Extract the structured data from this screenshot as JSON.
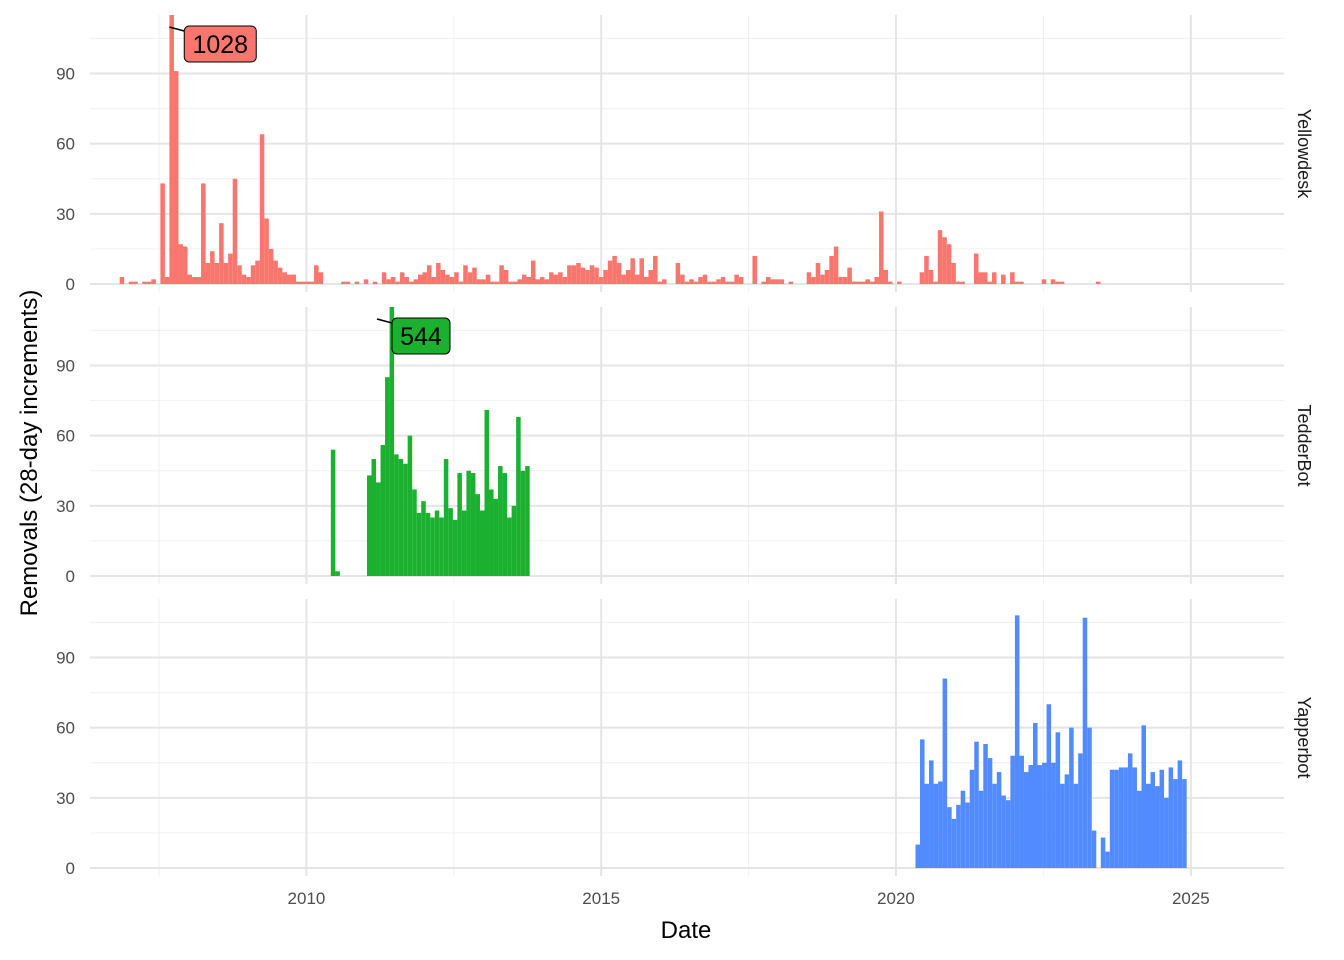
{
  "chart_data": {
    "type": "bar",
    "xlabel": "Date",
    "ylabel": "Removals (28-day increments)",
    "xlim": [
      "2006-05-01",
      "2026-08-01"
    ],
    "ylim": [
      0,
      115
    ],
    "x_ticks": [
      "2010-01-01",
      "2015-01-01",
      "2020-01-01",
      "2025-01-01"
    ],
    "x_tick_labels": [
      "2010",
      "2015",
      "2020",
      "2025"
    ],
    "y_ticks": [
      0,
      30,
      60,
      90
    ],
    "y_tick_labels": [
      "0",
      "30",
      "60",
      "90"
    ],
    "bin_days": 28,
    "grid": true,
    "facets": [
      {
        "name": "Yellowdesk",
        "color": "#F8766D",
        "start_date": "2006-11-01",
        "values": [
          3,
          0,
          1,
          1,
          0,
          1,
          1,
          2,
          0,
          43,
          3,
          1028,
          91,
          17,
          16,
          4,
          3,
          3,
          43,
          9,
          14,
          9,
          26,
          9,
          13,
          45,
          8,
          4,
          3,
          8,
          10,
          64,
          28,
          15,
          10,
          7,
          5,
          4,
          4,
          1,
          1,
          1,
          1,
          8,
          5,
          0,
          0,
          0,
          0,
          1,
          1,
          0,
          1,
          0,
          2,
          0,
          1,
          0,
          5,
          2,
          3,
          1,
          5,
          3,
          1,
          2,
          4,
          5,
          8,
          3,
          9,
          6,
          4,
          3,
          5,
          1,
          8,
          5,
          7,
          2,
          2,
          4,
          1,
          1,
          8,
          6,
          1,
          1,
          2,
          4,
          3,
          10,
          2,
          3,
          2,
          5,
          4,
          5,
          3,
          8,
          8,
          9,
          7,
          6,
          8,
          7,
          3,
          6,
          10,
          12,
          9,
          4,
          6,
          11,
          4,
          11,
          3,
          6,
          12,
          1,
          2,
          0,
          0,
          9,
          4,
          1,
          2,
          1,
          3,
          4,
          1,
          1,
          2,
          3,
          1,
          1,
          4,
          3,
          0,
          0,
          12,
          0,
          1,
          3,
          2,
          2,
          2,
          0,
          1,
          0,
          0,
          0,
          5,
          3,
          9,
          4,
          6,
          12,
          16,
          3,
          3,
          7,
          1,
          1,
          1,
          2,
          1,
          3,
          31,
          6,
          1,
          0,
          1,
          0,
          0,
          0,
          0,
          5,
          12,
          6,
          1,
          23,
          20,
          17,
          9,
          1,
          1,
          0,
          0,
          13,
          5,
          5,
          1,
          5,
          0,
          4,
          0,
          5,
          1,
          1,
          0,
          0,
          0,
          0,
          2,
          0,
          2,
          1,
          1,
          0,
          0,
          0,
          0,
          0,
          0,
          0,
          1
        ],
        "peak": {
          "label": "1028",
          "date": "2007-09-04",
          "value": 1028
        }
      },
      {
        "name": "TedderBot",
        "color": "#1BB02F",
        "start_date": "2010-06-01",
        "values": [
          54,
          2,
          0,
          0,
          0,
          0,
          0,
          0,
          43,
          50,
          40,
          56,
          85,
          544,
          52,
          50,
          48,
          60,
          37,
          27,
          32,
          27,
          25,
          28,
          25,
          50,
          29,
          24,
          44,
          28,
          45,
          44,
          35,
          28,
          71,
          37,
          33,
          47,
          44,
          25,
          30,
          68,
          45,
          47
        ],
        "peak": {
          "label": "544",
          "date": "2011-03-14",
          "value": 544
        }
      },
      {
        "name": "Yapperbot",
        "color": "#518BFF",
        "start_date": "2020-05-01",
        "values": [
          10,
          55,
          36,
          46,
          36,
          37,
          81,
          26,
          21,
          27,
          33,
          28,
          42,
          54,
          33,
          53,
          47,
          36,
          41,
          31,
          29,
          48,
          108,
          48,
          41,
          44,
          62,
          44,
          45,
          70,
          45,
          58,
          36,
          40,
          60,
          36,
          49,
          107,
          60,
          16,
          0,
          13,
          7,
          42,
          42,
          43,
          43,
          49,
          43,
          33,
          61,
          36,
          41,
          35,
          42,
          30,
          43,
          38,
          46,
          38
        ]
      }
    ]
  }
}
